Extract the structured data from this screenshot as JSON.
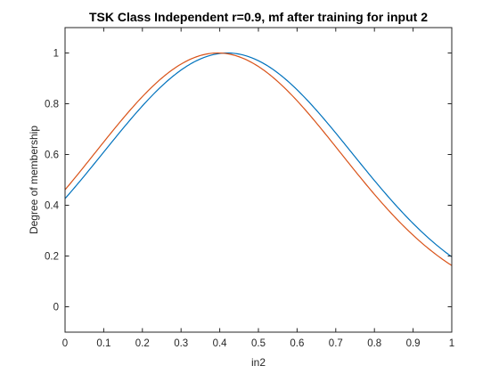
{
  "chart_data": {
    "type": "line",
    "title": "TSK Class Independent r=0.9, mf after training for input 2",
    "xlabel": "in2",
    "ylabel": "Degree of membership",
    "xlim": [
      0,
      1
    ],
    "ylim": [
      -0.1,
      1.1
    ],
    "x_ticks": [
      0,
      0.1,
      0.2,
      0.3,
      0.4,
      0.5,
      0.6,
      0.7,
      0.8,
      0.9,
      1
    ],
    "x_tick_labels": [
      "0",
      "0.1",
      "0.2",
      "0.3",
      "0.4",
      "0.5",
      "0.6",
      "0.7",
      "0.8",
      "0.9",
      "1"
    ],
    "y_ticks": [
      0,
      0.2,
      0.4,
      0.6,
      0.8,
      1
    ],
    "y_tick_labels": [
      "0",
      "0.2",
      "0.4",
      "0.6",
      "0.8",
      "1"
    ],
    "grid": false,
    "legend": "none",
    "series": [
      {
        "color": "#0072BD",
        "shape": "gaussian",
        "center": 0.42,
        "sigma": 0.3216,
        "x": [
          0,
          0.05,
          0.1,
          0.15,
          0.2,
          0.25,
          0.3,
          0.35,
          0.4,
          0.42,
          0.45,
          0.5,
          0.55,
          0.6,
          0.65,
          0.7,
          0.75,
          0.8,
          0.85,
          0.9,
          0.95,
          1
        ],
        "y": [
          0.43,
          0.505,
          0.583,
          0.66,
          0.735,
          0.805,
          0.87,
          0.925,
          0.97,
          1.0,
          0.997,
          0.97,
          0.92,
          0.855,
          0.775,
          0.69,
          0.6,
          0.505,
          0.42,
          0.34,
          0.27,
          0.21
        ]
      },
      {
        "color": "#D95319",
        "shape": "gaussian",
        "center": 0.395,
        "sigma": 0.3174,
        "x": [
          0,
          0.05,
          0.1,
          0.15,
          0.2,
          0.25,
          0.3,
          0.35,
          0.395,
          0.4,
          0.45,
          0.5,
          0.55,
          0.6,
          0.65,
          0.7,
          0.75,
          0.8,
          0.85,
          0.9,
          0.95,
          1
        ],
        "y": [
          0.48,
          0.555,
          0.635,
          0.71,
          0.785,
          0.85,
          0.91,
          0.96,
          1.0,
          0.999,
          0.985,
          0.945,
          0.89,
          0.81,
          0.73,
          0.64,
          0.55,
          0.46,
          0.38,
          0.3,
          0.235,
          0.175
        ]
      }
    ]
  }
}
